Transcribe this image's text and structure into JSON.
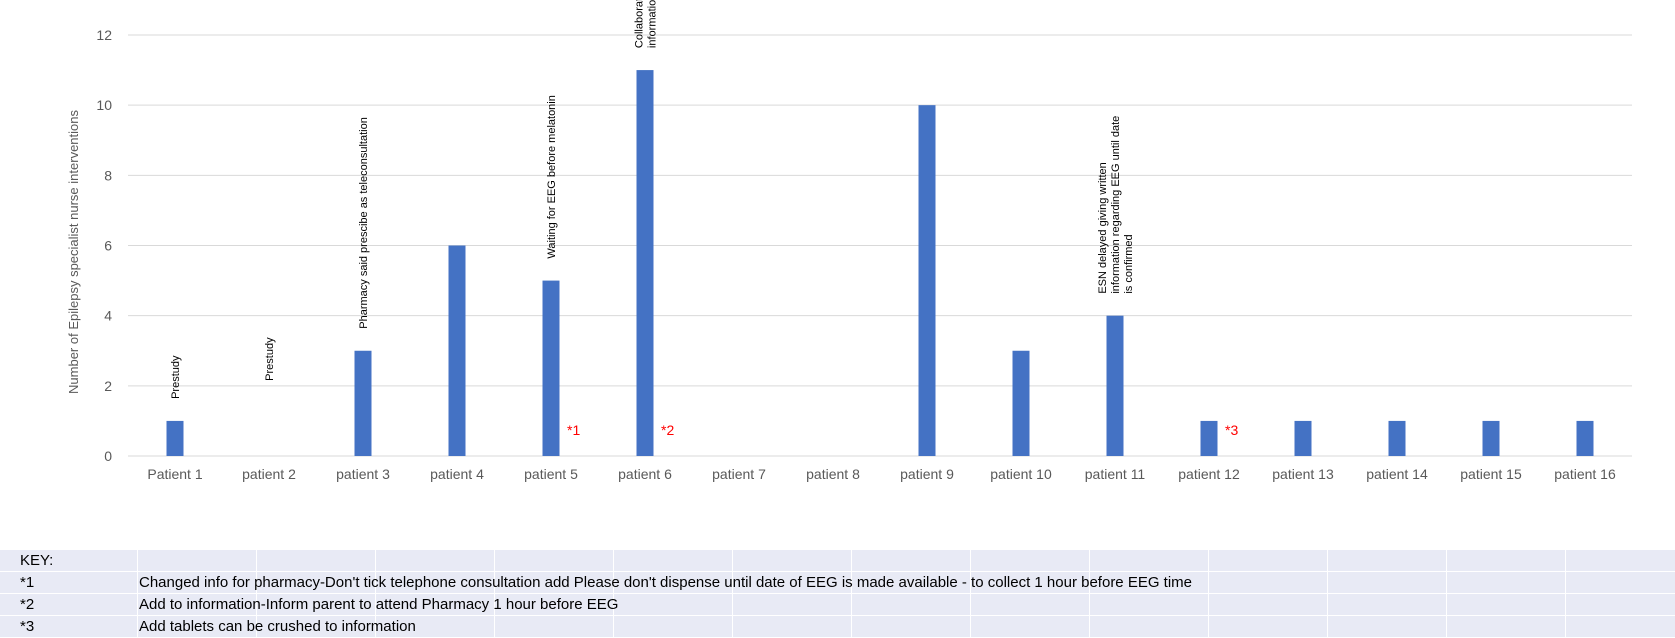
{
  "chart_data": {
    "type": "bar",
    "title": "",
    "xlabel": "",
    "ylabel": "Number of Epilepsy specialist nurse interventions",
    "ylim": [
      0,
      12
    ],
    "yticks": [
      0,
      2,
      4,
      6,
      8,
      10,
      12
    ],
    "grid": true,
    "bar_color": "#4472c4",
    "categories": [
      "Patient 1",
      "patient 2",
      "patient 3",
      "patient 4",
      "patient 5",
      "patient 6",
      "patient 7",
      "patient 8",
      "patient 9",
      "patient 10",
      "patient 11",
      "patient 12",
      "patient 13",
      "patient 14",
      "patient 15",
      "patient 16"
    ],
    "values": [
      1,
      0,
      3,
      6,
      5,
      11,
      0,
      0,
      10,
      3,
      4,
      1,
      1,
      1,
      1,
      1
    ],
    "annotations": [
      {
        "category": "Patient 1",
        "lines": [
          "Prestudy"
        ]
      },
      {
        "category": "patient 2",
        "lines": [
          "Prestudy"
        ]
      },
      {
        "category": "patient 3",
        "lines": [
          "Pharmacy said prescibe as teleconsultation"
        ]
      },
      {
        "category": "patient 5",
        "lines": [
          "Waiting for EEG before melatonin"
        ]
      },
      {
        "category": "patient 6",
        "lines": [
          "Collaboration with EEG regarding",
          "information for parents"
        ]
      },
      {
        "category": "patient 11",
        "lines": [
          "ESN delayed giving written",
          "information regarding EEG until date",
          "is confirmed"
        ]
      }
    ],
    "reference_markers": [
      {
        "category": "patient 5",
        "label": "*1"
      },
      {
        "category": "patient 6",
        "label": "*2"
      },
      {
        "category": "patient 12",
        "label": "*3"
      }
    ]
  },
  "key": {
    "title": "KEY:",
    "rows": [
      {
        "code": "*1",
        "text": "Changed info for pharmacy-Don't tick telephone consultation add Please don't dispense until date of EEG is made available   - to collect 1 hour before EEG time"
      },
      {
        "code": "*2",
        "text": "Add to information-Inform parent to attend Pharmacy 1 hour before EEG"
      },
      {
        "code": "*3",
        "text": "Add tablets can be crushed to information"
      }
    ]
  }
}
